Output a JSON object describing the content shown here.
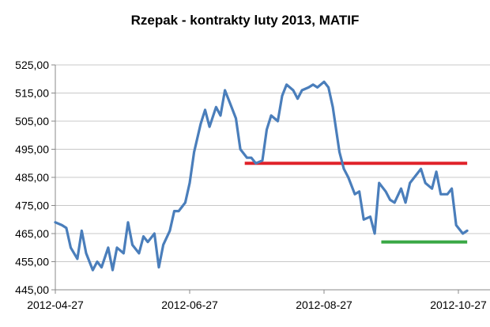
{
  "chart_data": {
    "type": "line",
    "title": "Rzepak - kontrakty luty 2013, MATIF",
    "xlabel": "",
    "ylabel": "",
    "ylim": [
      445,
      525
    ],
    "yticks": [
      "445,00",
      "455,00",
      "465,00",
      "475,00",
      "485,00",
      "495,00",
      "505,00",
      "515,00",
      "525,00"
    ],
    "xticks": [
      "2012-04-27",
      "2012-06-27",
      "2012-08-27",
      "2012-10-27"
    ],
    "grid": "horizontal",
    "legend": "none",
    "series": [
      {
        "color": "#4a7ebb",
        "x": [
          "2012-04-27",
          "2012-04-30",
          "2012-05-02",
          "2012-05-04",
          "2012-05-07",
          "2012-05-09",
          "2012-05-11",
          "2012-05-14",
          "2012-05-16",
          "2012-05-18",
          "2012-05-21",
          "2012-05-23",
          "2012-05-25",
          "2012-05-28",
          "2012-05-30",
          "2012-06-01",
          "2012-06-04",
          "2012-06-06",
          "2012-06-08",
          "2012-06-11",
          "2012-06-13",
          "2012-06-15",
          "2012-06-18",
          "2012-06-20",
          "2012-06-22",
          "2012-06-25",
          "2012-06-27",
          "2012-06-29",
          "2012-07-02",
          "2012-07-04",
          "2012-07-06",
          "2012-07-09",
          "2012-07-11",
          "2012-07-13",
          "2012-07-16",
          "2012-07-18",
          "2012-07-20",
          "2012-07-23",
          "2012-07-25",
          "2012-07-27",
          "2012-07-30",
          "2012-08-01",
          "2012-08-03",
          "2012-08-06",
          "2012-08-08",
          "2012-08-10",
          "2012-08-13",
          "2012-08-15",
          "2012-08-17",
          "2012-08-20",
          "2012-08-22",
          "2012-08-24",
          "2012-08-27",
          "2012-08-29",
          "2012-08-31",
          "2012-09-03",
          "2012-09-05",
          "2012-09-07",
          "2012-09-10",
          "2012-09-12",
          "2012-09-14",
          "2012-09-17",
          "2012-09-19",
          "2012-09-21",
          "2012-09-24",
          "2012-09-26",
          "2012-09-28",
          "2012-10-01",
          "2012-10-03",
          "2012-10-05",
          "2012-10-08",
          "2012-10-10",
          "2012-10-12",
          "2012-10-15",
          "2012-10-17",
          "2012-10-19",
          "2012-10-22",
          "2012-10-24",
          "2012-10-26",
          "2012-10-29",
          "2012-10-31"
        ],
        "values": [
          469,
          468,
          467,
          460,
          456,
          466,
          458,
          452,
          455,
          453,
          460,
          452,
          460,
          458,
          469,
          461,
          458,
          464,
          462,
          465,
          453,
          461,
          466,
          473,
          473,
          476,
          483,
          494,
          504,
          509,
          503,
          510,
          507,
          516,
          510,
          506,
          495,
          492,
          492,
          490,
          491,
          502,
          507,
          505,
          514,
          518,
          516,
          513,
          516,
          517,
          518,
          517,
          519,
          517,
          510,
          494,
          488,
          485,
          479,
          480,
          470,
          471,
          465,
          483,
          480,
          477,
          476,
          481,
          476,
          483,
          486,
          488,
          483,
          481,
          487,
          479,
          479,
          481,
          468,
          465,
          466
        ]
      }
    ],
    "annotations": [
      {
        "type": "hline",
        "color": "#e0222a",
        "y": 490,
        "x_start": "2012-07-22",
        "x_end": "2012-10-31"
      },
      {
        "type": "hline",
        "color": "#39a845",
        "y": 462,
        "x_start": "2012-09-22",
        "x_end": "2012-10-31"
      }
    ]
  }
}
